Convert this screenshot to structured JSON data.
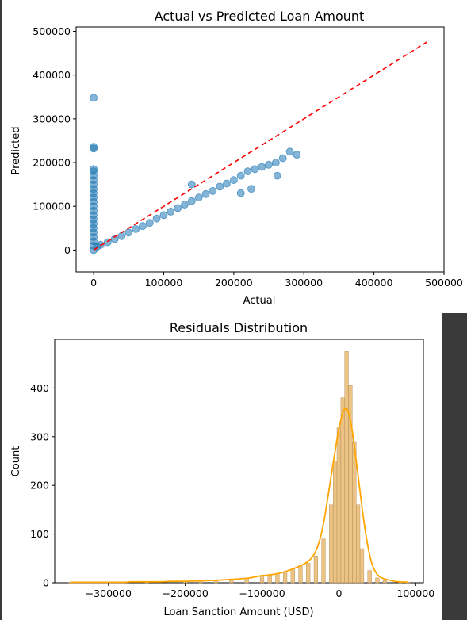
{
  "chart_data": [
    {
      "type": "scatter",
      "title": "Actual vs Predicted Loan Amount",
      "xlabel": "Actual",
      "ylabel": "Predicted",
      "xlim": [
        -25000,
        500000
      ],
      "ylim": [
        -50000,
        510000
      ],
      "xticks": [
        "0",
        "100000",
        "200000",
        "300000",
        "400000",
        "500000"
      ],
      "xtick_values": [
        0,
        100000,
        200000,
        300000,
        400000,
        500000
      ],
      "yticks": [
        "0",
        "100000",
        "200000",
        "300000",
        "400000",
        "500000"
      ],
      "ytick_values": [
        0,
        100000,
        200000,
        300000,
        400000,
        500000
      ],
      "point_color": "#1f77b4",
      "reference_line": {
        "from": [
          0,
          0
        ],
        "to": [
          480000,
          480000
        ],
        "color": "#ff0000",
        "style": "dashed"
      },
      "series": [
        {
          "points": [
            [
              0,
              348000
            ],
            [
              0,
              236000
            ],
            [
              0,
              232000
            ],
            [
              0,
              185000
            ],
            [
              0,
              180000
            ],
            [
              0,
              170000
            ],
            [
              0,
              160000
            ],
            [
              0,
              150000
            ],
            [
              0,
              140000
            ],
            [
              0,
              130000
            ],
            [
              0,
              120000
            ],
            [
              0,
              110000
            ],
            [
              0,
              100000
            ],
            [
              0,
              90000
            ],
            [
              0,
              80000
            ],
            [
              0,
              70000
            ],
            [
              0,
              60000
            ],
            [
              0,
              50000
            ],
            [
              0,
              40000
            ],
            [
              0,
              30000
            ],
            [
              0,
              20000
            ],
            [
              0,
              10000
            ],
            [
              0,
              0
            ],
            [
              5000,
              8000
            ],
            [
              10000,
              12000
            ],
            [
              20000,
              18000
            ],
            [
              30000,
              25000
            ],
            [
              40000,
              32000
            ],
            [
              50000,
              40000
            ],
            [
              60000,
              48000
            ],
            [
              70000,
              55000
            ],
            [
              80000,
              62000
            ],
            [
              90000,
              72000
            ],
            [
              100000,
              80000
            ],
            [
              110000,
              88000
            ],
            [
              120000,
              96000
            ],
            [
              130000,
              104000
            ],
            [
              140000,
              112000
            ],
            [
              150000,
              120000
            ],
            [
              160000,
              128000
            ],
            [
              170000,
              135000
            ],
            [
              180000,
              145000
            ],
            [
              190000,
              152000
            ],
            [
              200000,
              160000
            ],
            [
              210000,
              170000
            ],
            [
              220000,
              180000
            ],
            [
              230000,
              185000
            ],
            [
              240000,
              190000
            ],
            [
              250000,
              195000
            ],
            [
              260000,
              200000
            ],
            [
              270000,
              210000
            ],
            [
              280000,
              225000
            ],
            [
              290000,
              218000
            ],
            [
              262000,
              170000
            ],
            [
              225000,
              140000
            ],
            [
              210000,
              130000
            ],
            [
              140000,
              150000
            ]
          ]
        }
      ]
    },
    {
      "type": "bar",
      "subtype": "histogram",
      "title": "Residuals Distribution",
      "xlabel": "Loan Sanction Amount (USD)",
      "ylabel": "Count",
      "xlim": [
        -370000,
        110000
      ],
      "ylim": [
        0,
        500
      ],
      "xticks": [
        "−300000",
        "−200000",
        "−100000",
        "0",
        "100000"
      ],
      "xtick_values": [
        -300000,
        -200000,
        -100000,
        0,
        100000
      ],
      "yticks": [
        "0",
        "100",
        "200",
        "300",
        "400"
      ],
      "ytick_values": [
        0,
        100,
        200,
        300,
        400
      ],
      "bar_color": "#e8b870",
      "kde_color": "#ffa500",
      "bins": [
        {
          "x": -350000,
          "count": 1
        },
        {
          "x": -300000,
          "count": 1
        },
        {
          "x": -250000,
          "count": 2
        },
        {
          "x": -200000,
          "count": 3
        },
        {
          "x": -180000,
          "count": 4
        },
        {
          "x": -160000,
          "count": 5
        },
        {
          "x": -140000,
          "count": 7
        },
        {
          "x": -120000,
          "count": 9
        },
        {
          "x": -100000,
          "count": 14
        },
        {
          "x": -90000,
          "count": 16
        },
        {
          "x": -80000,
          "count": 18
        },
        {
          "x": -70000,
          "count": 22
        },
        {
          "x": -60000,
          "count": 28
        },
        {
          "x": -50000,
          "count": 35
        },
        {
          "x": -40000,
          "count": 40
        },
        {
          "x": -30000,
          "count": 55
        },
        {
          "x": -20000,
          "count": 90
        },
        {
          "x": -10000,
          "count": 160
        },
        {
          "x": -5000,
          "count": 250
        },
        {
          "x": 0,
          "count": 320
        },
        {
          "x": 5000,
          "count": 380
        },
        {
          "x": 10000,
          "count": 475
        },
        {
          "x": 15000,
          "count": 405
        },
        {
          "x": 20000,
          "count": 290
        },
        {
          "x": 25000,
          "count": 160
        },
        {
          "x": 30000,
          "count": 70
        },
        {
          "x": 40000,
          "count": 25
        },
        {
          "x": 50000,
          "count": 10
        },
        {
          "x": 60000,
          "count": 5
        },
        {
          "x": 80000,
          "count": 2
        },
        {
          "x": 90000,
          "count": 1
        }
      ]
    }
  ]
}
